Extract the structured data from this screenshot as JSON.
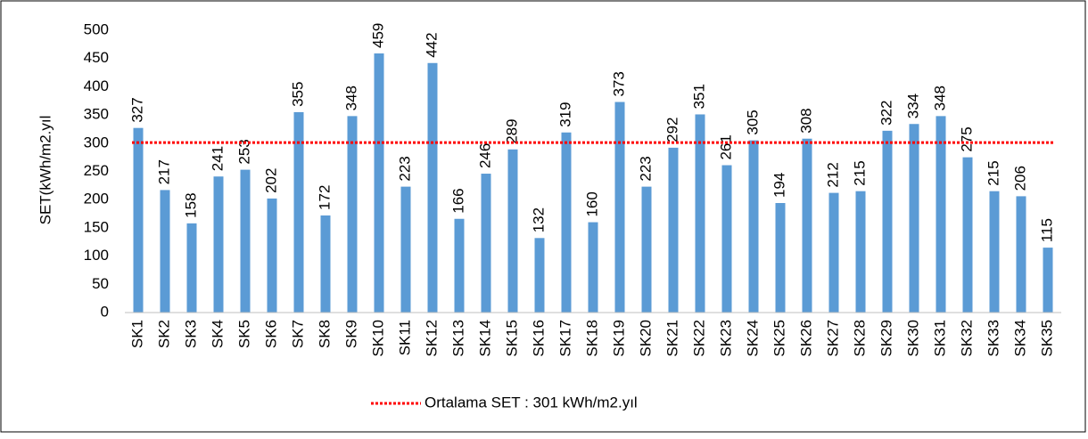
{
  "chart_data": {
    "type": "bar",
    "y_label": "SET(kWh/m2.yıl",
    "categories": [
      "SK1",
      "SK2",
      "SK3",
      "SK4",
      "SK5",
      "SK6",
      "SK7",
      "SK8",
      "SK9",
      "SK10",
      "SK11",
      "SK12",
      "SK13",
      "SK14",
      "SK15",
      "SK16",
      "SK17",
      "SK18",
      "SK19",
      "SK20",
      "SK21",
      "SK22",
      "SK23",
      "SK24",
      "SK25",
      "SK26",
      "SK27",
      "SK28",
      "SK29",
      "SK30",
      "SK31",
      "SK32",
      "SK33",
      "SK34",
      "SK35"
    ],
    "values": [
      327,
      217,
      158,
      241,
      253,
      202,
      355,
      172,
      348,
      459,
      223,
      442,
      166,
      246,
      289,
      132,
      319,
      160,
      373,
      223,
      292,
      351,
      261,
      305,
      194,
      308,
      212,
      215,
      322,
      334,
      348,
      275,
      215,
      206,
      115
    ],
    "color": "#5b9bd5",
    "reference_line": {
      "name": "Ortalama SET : 301 kWh/m2.yıl",
      "value": 301,
      "color": "#ff0000"
    },
    "ylim": [
      0,
      500
    ],
    "yticks": [
      0,
      50,
      100,
      150,
      200,
      250,
      300,
      350,
      400,
      450,
      500
    ],
    "grid": false,
    "legend": "bottom"
  }
}
